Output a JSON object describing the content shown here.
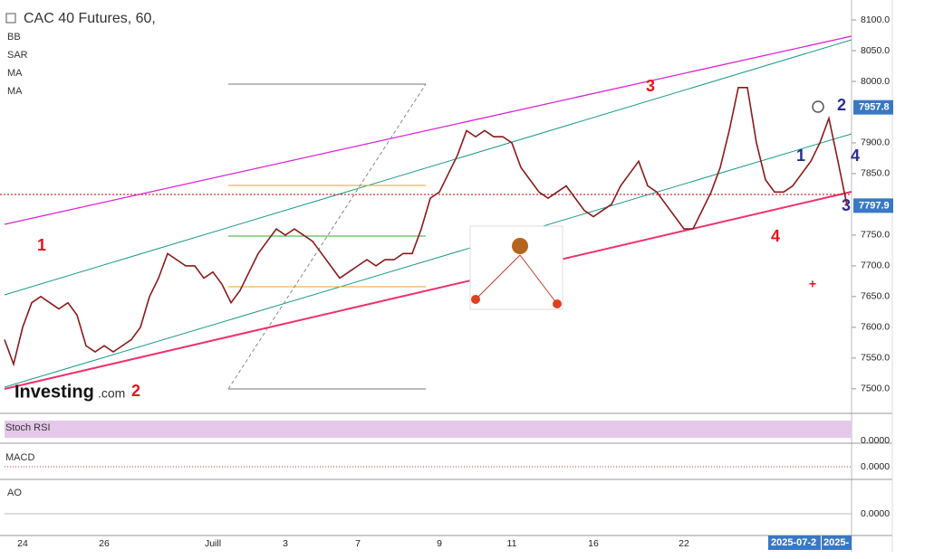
{
  "chart_data": {
    "type": "line",
    "title": "CAC 40 Futures, 60,",
    "indicators": [
      "BB",
      "SAR",
      "MA",
      "MA"
    ],
    "categories": [
      null,
      null,
      "24",
      null,
      null,
      null,
      null,
      null,
      null,
      null,
      null,
      "26",
      null,
      null,
      null,
      null,
      null,
      null,
      null,
      null,
      null,
      null,
      null,
      "Juill",
      null,
      null,
      null,
      null,
      null,
      null,
      null,
      "3",
      null,
      null,
      null,
      null,
      null,
      null,
      null,
      "7",
      null,
      null,
      null,
      null,
      null,
      null,
      null,
      null,
      "9",
      null,
      null,
      null,
      null,
      null,
      null,
      null,
      "11",
      null,
      null,
      null,
      null,
      null,
      null,
      null,
      null,
      "16",
      null,
      null,
      null,
      null,
      null,
      null,
      null,
      null,
      null,
      "22",
      null,
      null,
      null,
      null,
      null,
      null,
      null,
      null,
      null,
      null,
      null,
      null,
      null,
      null,
      null,
      null,
      null,
      null
    ],
    "values": [
      7580,
      7540,
      7600,
      7640,
      7650,
      7640,
      7630,
      7640,
      7620,
      7570,
      7560,
      7570,
      7560,
      7570,
      7580,
      7600,
      7650,
      7680,
      7720,
      7710,
      7700,
      7700,
      7680,
      7690,
      7670,
      7640,
      7660,
      7690,
      7720,
      7740,
      7760,
      7750,
      7760,
      7750,
      7740,
      7720,
      7700,
      7680,
      7690,
      7700,
      7710,
      7700,
      7710,
      7710,
      7720,
      7720,
      7760,
      7810,
      7820,
      7850,
      7880,
      7920,
      7910,
      7920,
      7910,
      7910,
      7900,
      7860,
      7840,
      7820,
      7810,
      7820,
      7830,
      7810,
      7790,
      7780,
      7790,
      7800,
      7830,
      7850,
      7870,
      7830,
      7820,
      7800,
      7780,
      7760,
      7760,
      7790,
      7820,
      7860,
      7920,
      7990,
      7990,
      7900,
      7840,
      7820,
      7820,
      7830,
      7850,
      7870,
      7900,
      7940,
      7870,
      7798
    ],
    "color": "#8b1a1a",
    "ylim": [
      7463,
      8125
    ],
    "yticks": [
      {
        "value": 8100,
        "label": "8100.0"
      },
      {
        "value": 8050,
        "label": "8050.0"
      },
      {
        "value": 8000,
        "label": "8000.0"
      },
      {
        "value": 7900,
        "label": "7900.0"
      },
      {
        "value": 7850,
        "label": "7850.0"
      },
      {
        "value": 7750,
        "label": "7750.0"
      },
      {
        "value": 7700,
        "label": "7700.0"
      },
      {
        "value": 7650,
        "label": "7650.0"
      },
      {
        "value": 7600,
        "label": "7600.0"
      },
      {
        "value": 7550,
        "label": "7550.0"
      },
      {
        "value": 7500,
        "label": "7500.0"
      }
    ],
    "price_tags": [
      {
        "value": 7957.8,
        "label": "7957.8"
      },
      {
        "value": 7797.9,
        "label": "7797.9"
      }
    ],
    "annotations": [
      "1",
      "2",
      "3",
      "4",
      "1",
      "2",
      "3",
      "4",
      "+"
    ],
    "logo": [
      "Investing",
      ".com"
    ],
    "panels": [
      {
        "name": "Stoch RSI",
        "tick": {
          "value": 0,
          "label": "0.0000"
        }
      },
      {
        "name": "MACD",
        "tick": {
          "value": 0,
          "label": "0.0000"
        }
      },
      {
        "name": "AO",
        "tick": {
          "value": 0,
          "label": "0.0000"
        }
      }
    ],
    "date_labels": [
      "2025-07-2",
      "2025-"
    ]
  }
}
